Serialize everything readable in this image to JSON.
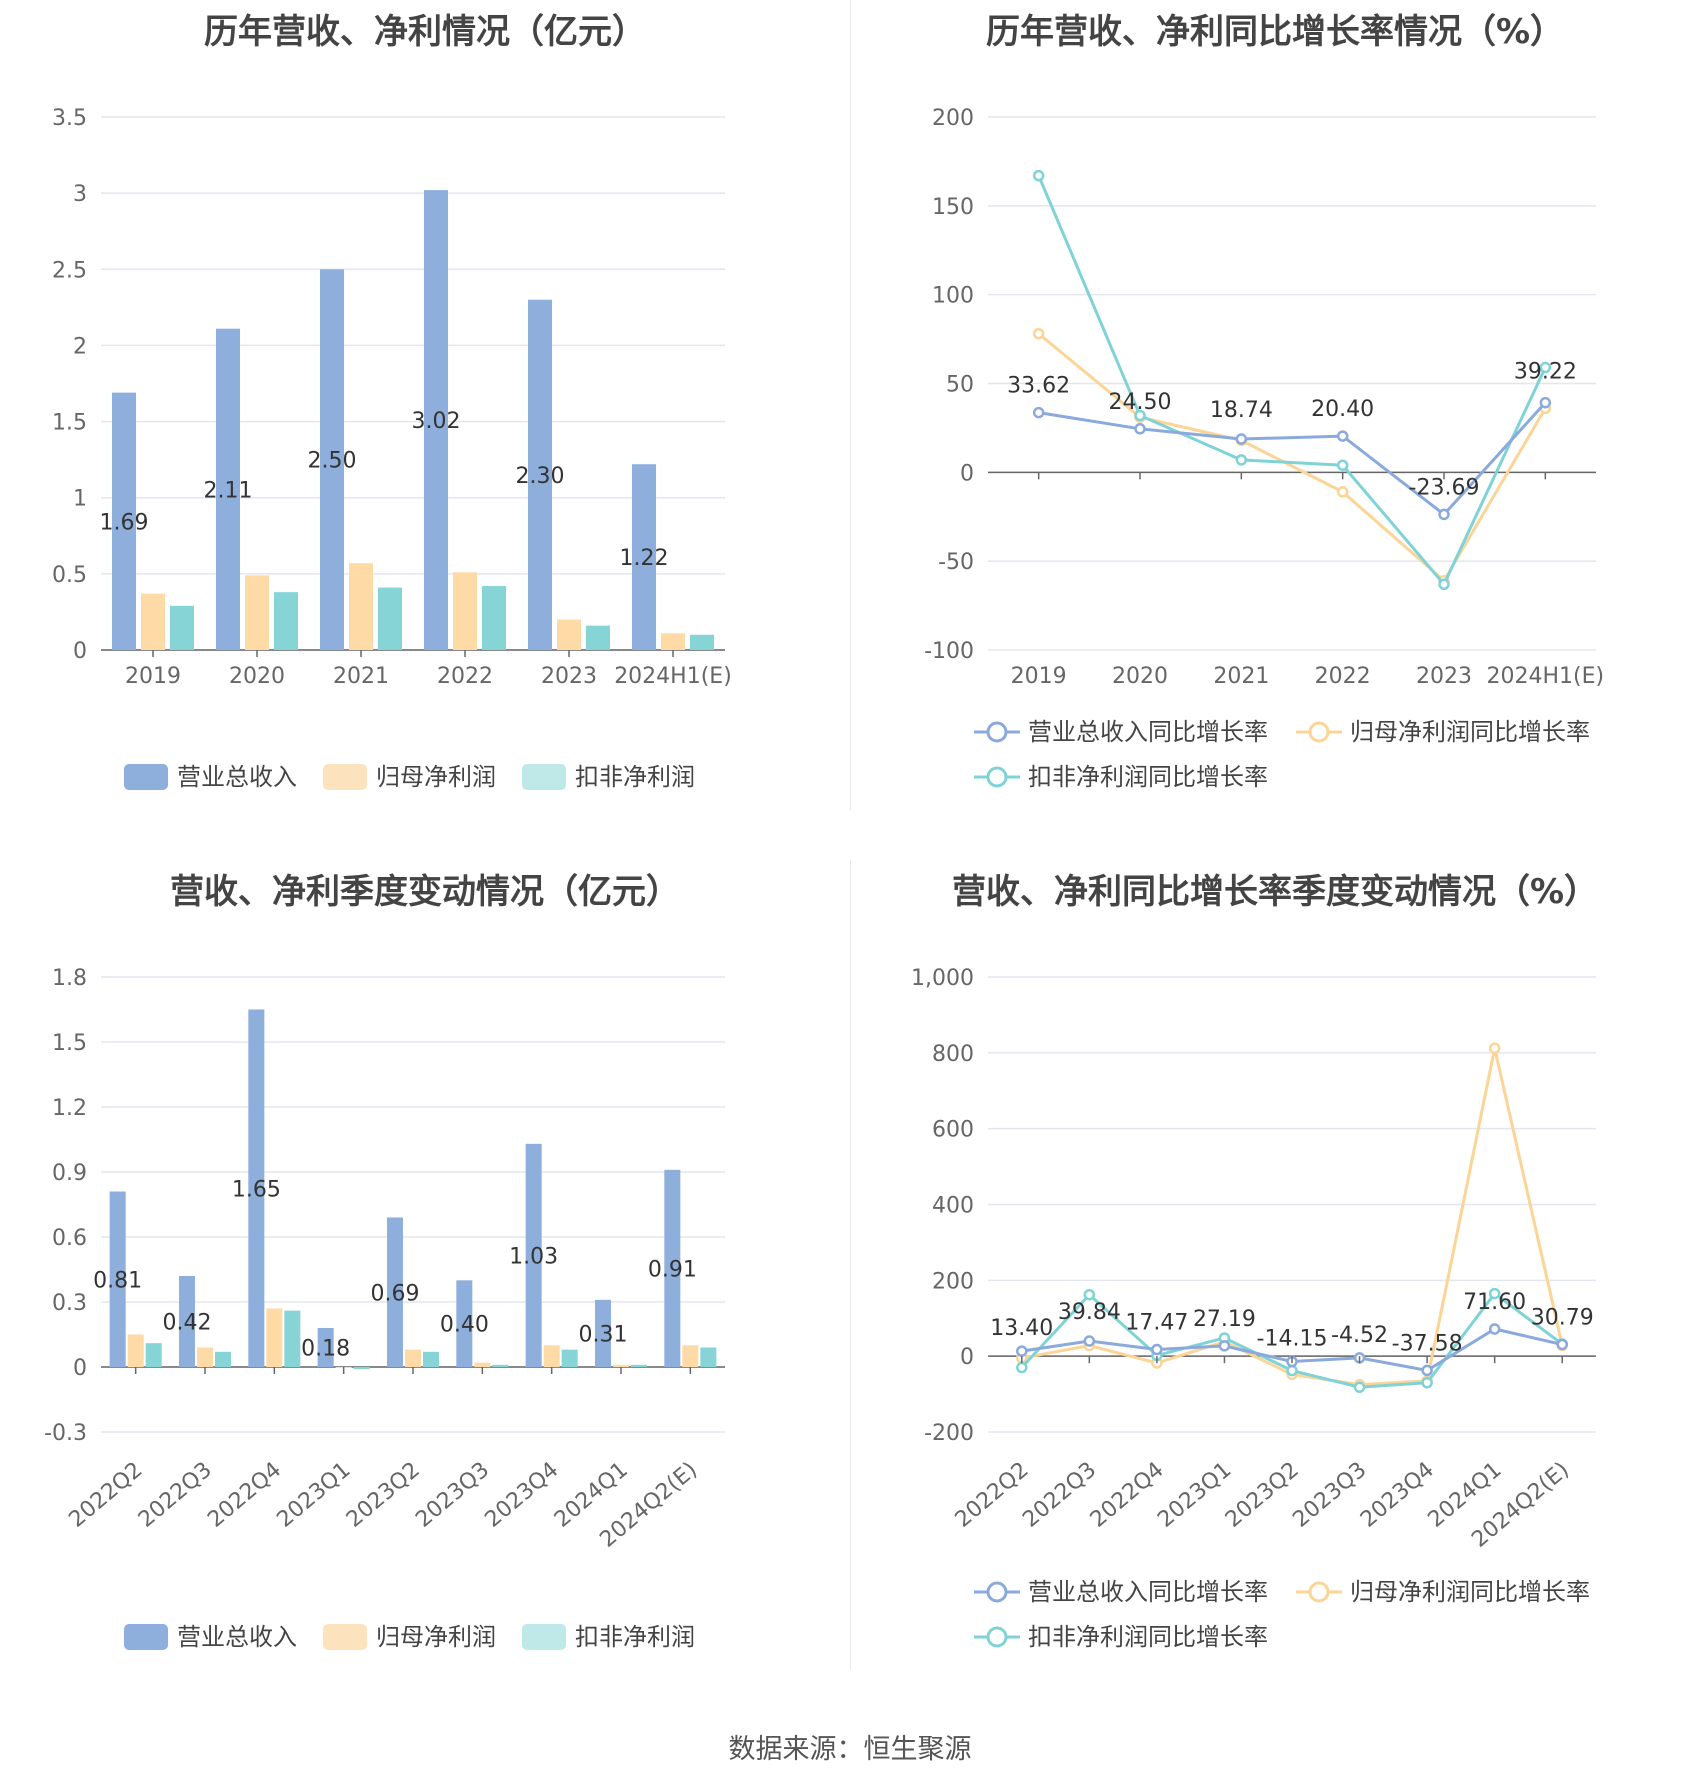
{
  "colors": {
    "revenue": "#8eaedc",
    "net_profit": "#fddaa6",
    "deducted_profit": "#87d4d6",
    "revenue_line": "#8aa9dc",
    "net_profit_line": "#fcd496",
    "deducted_profit_line": "#7fd3d7",
    "grid": "#e3e6f0",
    "axis": "#666666"
  },
  "source": "数据来源：恒生聚源",
  "chart_data": [
    {
      "id": "annual-bar",
      "type": "bar",
      "title": "历年营收、净利情况（亿元）",
      "categories": [
        "2019",
        "2020",
        "2021",
        "2022",
        "2023",
        "2024H1(E)"
      ],
      "series": [
        {
          "name": "营业总收入",
          "values": [
            1.69,
            2.11,
            2.5,
            3.02,
            2.3,
            1.22
          ],
          "labels": [
            "1.69",
            "2.11",
            "2.50",
            "3.02",
            "2.30",
            "1.22"
          ]
        },
        {
          "name": "归母净利润",
          "values": [
            0.37,
            0.49,
            0.57,
            0.51,
            0.2,
            0.11
          ]
        },
        {
          "name": "扣非净利润",
          "values": [
            0.29,
            0.38,
            0.41,
            0.42,
            0.16,
            0.1
          ]
        }
      ],
      "yticks": [
        "0",
        "0.5",
        "1",
        "1.5",
        "2",
        "2.5",
        "3",
        "3.5"
      ],
      "ylim": [
        0,
        3.5
      ],
      "grid": true,
      "legend": "bottom"
    },
    {
      "id": "annual-line",
      "type": "line",
      "title": "历年营收、净利同比增长率情况（%）",
      "categories": [
        "2019",
        "2020",
        "2021",
        "2022",
        "2023",
        "2024H1(E)"
      ],
      "series": [
        {
          "name": "营业总收入同比增长率",
          "values": [
            33.62,
            24.5,
            18.74,
            20.4,
            -23.69,
            39.22
          ],
          "labels": [
            "33.62",
            "24.50",
            "18.74",
            "20.40",
            "-23.69",
            "39.22"
          ]
        },
        {
          "name": "归母净利润同比增长率",
          "values": [
            78,
            31,
            18,
            -11,
            -61,
            36
          ]
        },
        {
          "name": "扣非净利润同比增长率",
          "values": [
            167,
            32,
            7,
            4,
            -63,
            59
          ]
        }
      ],
      "yticks": [
        "-100",
        "-50",
        "0",
        "50",
        "100",
        "150",
        "200"
      ],
      "ylim": [
        -100,
        200
      ],
      "grid": true,
      "legend": "bottom"
    },
    {
      "id": "quarter-bar",
      "type": "bar",
      "title": "营收、净利季度变动情况（亿元）",
      "categories": [
        "2022Q2",
        "2022Q3",
        "2022Q4",
        "2023Q1",
        "2023Q2",
        "2023Q3",
        "2023Q4",
        "2024Q1",
        "2024Q2(E)"
      ],
      "series": [
        {
          "name": "营业总收入",
          "values": [
            0.81,
            0.42,
            1.65,
            0.18,
            0.69,
            0.4,
            1.03,
            0.31,
            0.91
          ],
          "labels": [
            "0.81",
            "0.42",
            "1.65",
            "0.18",
            "0.69",
            "0.40",
            "1.03",
            "0.31",
            "0.91"
          ]
        },
        {
          "name": "归母净利润",
          "values": [
            0.15,
            0.09,
            0.27,
            0.0,
            0.08,
            0.02,
            0.1,
            0.01,
            0.1
          ]
        },
        {
          "name": "扣非净利润",
          "values": [
            0.11,
            0.07,
            0.26,
            -0.01,
            0.07,
            0.01,
            0.08,
            0.01,
            0.09
          ]
        }
      ],
      "yticks": [
        "-0.3",
        "0",
        "0.3",
        "0.6",
        "0.9",
        "1.2",
        "1.5",
        "1.8"
      ],
      "ylim": [
        -0.3,
        1.8
      ],
      "grid": true,
      "legend": "bottom"
    },
    {
      "id": "quarter-line",
      "type": "line",
      "title": "营收、净利同比增长率季度变动情况（%）",
      "categories": [
        "2022Q2",
        "2022Q3",
        "2022Q4",
        "2023Q1",
        "2023Q2",
        "2023Q3",
        "2023Q4",
        "2024Q1",
        "2024Q2(E)"
      ],
      "series": [
        {
          "name": "营业总收入同比增长率",
          "values": [
            13.4,
            39.84,
            17.47,
            27.19,
            -14.15,
            -4.52,
            -37.58,
            71.6,
            30.79
          ],
          "labels": [
            "13.40",
            "39.84",
            "17.47",
            "27.19",
            "-14.15",
            "-4.52",
            "-37.58",
            "71.60",
            "30.79"
          ]
        },
        {
          "name": "归母净利润同比增长率",
          "values": [
            -5,
            28,
            -18,
            38,
            -48,
            -75,
            -65,
            812,
            28
          ]
        },
        {
          "name": "扣非净利润同比增长率",
          "values": [
            -30,
            162,
            2,
            48,
            -38,
            -82,
            -70,
            165,
            32
          ]
        }
      ],
      "yticks": [
        "-200",
        "0",
        "200",
        "400",
        "600",
        "800",
        "1,000"
      ],
      "ylim": [
        -200,
        1000
      ],
      "grid": true,
      "legend": "bottom"
    }
  ]
}
